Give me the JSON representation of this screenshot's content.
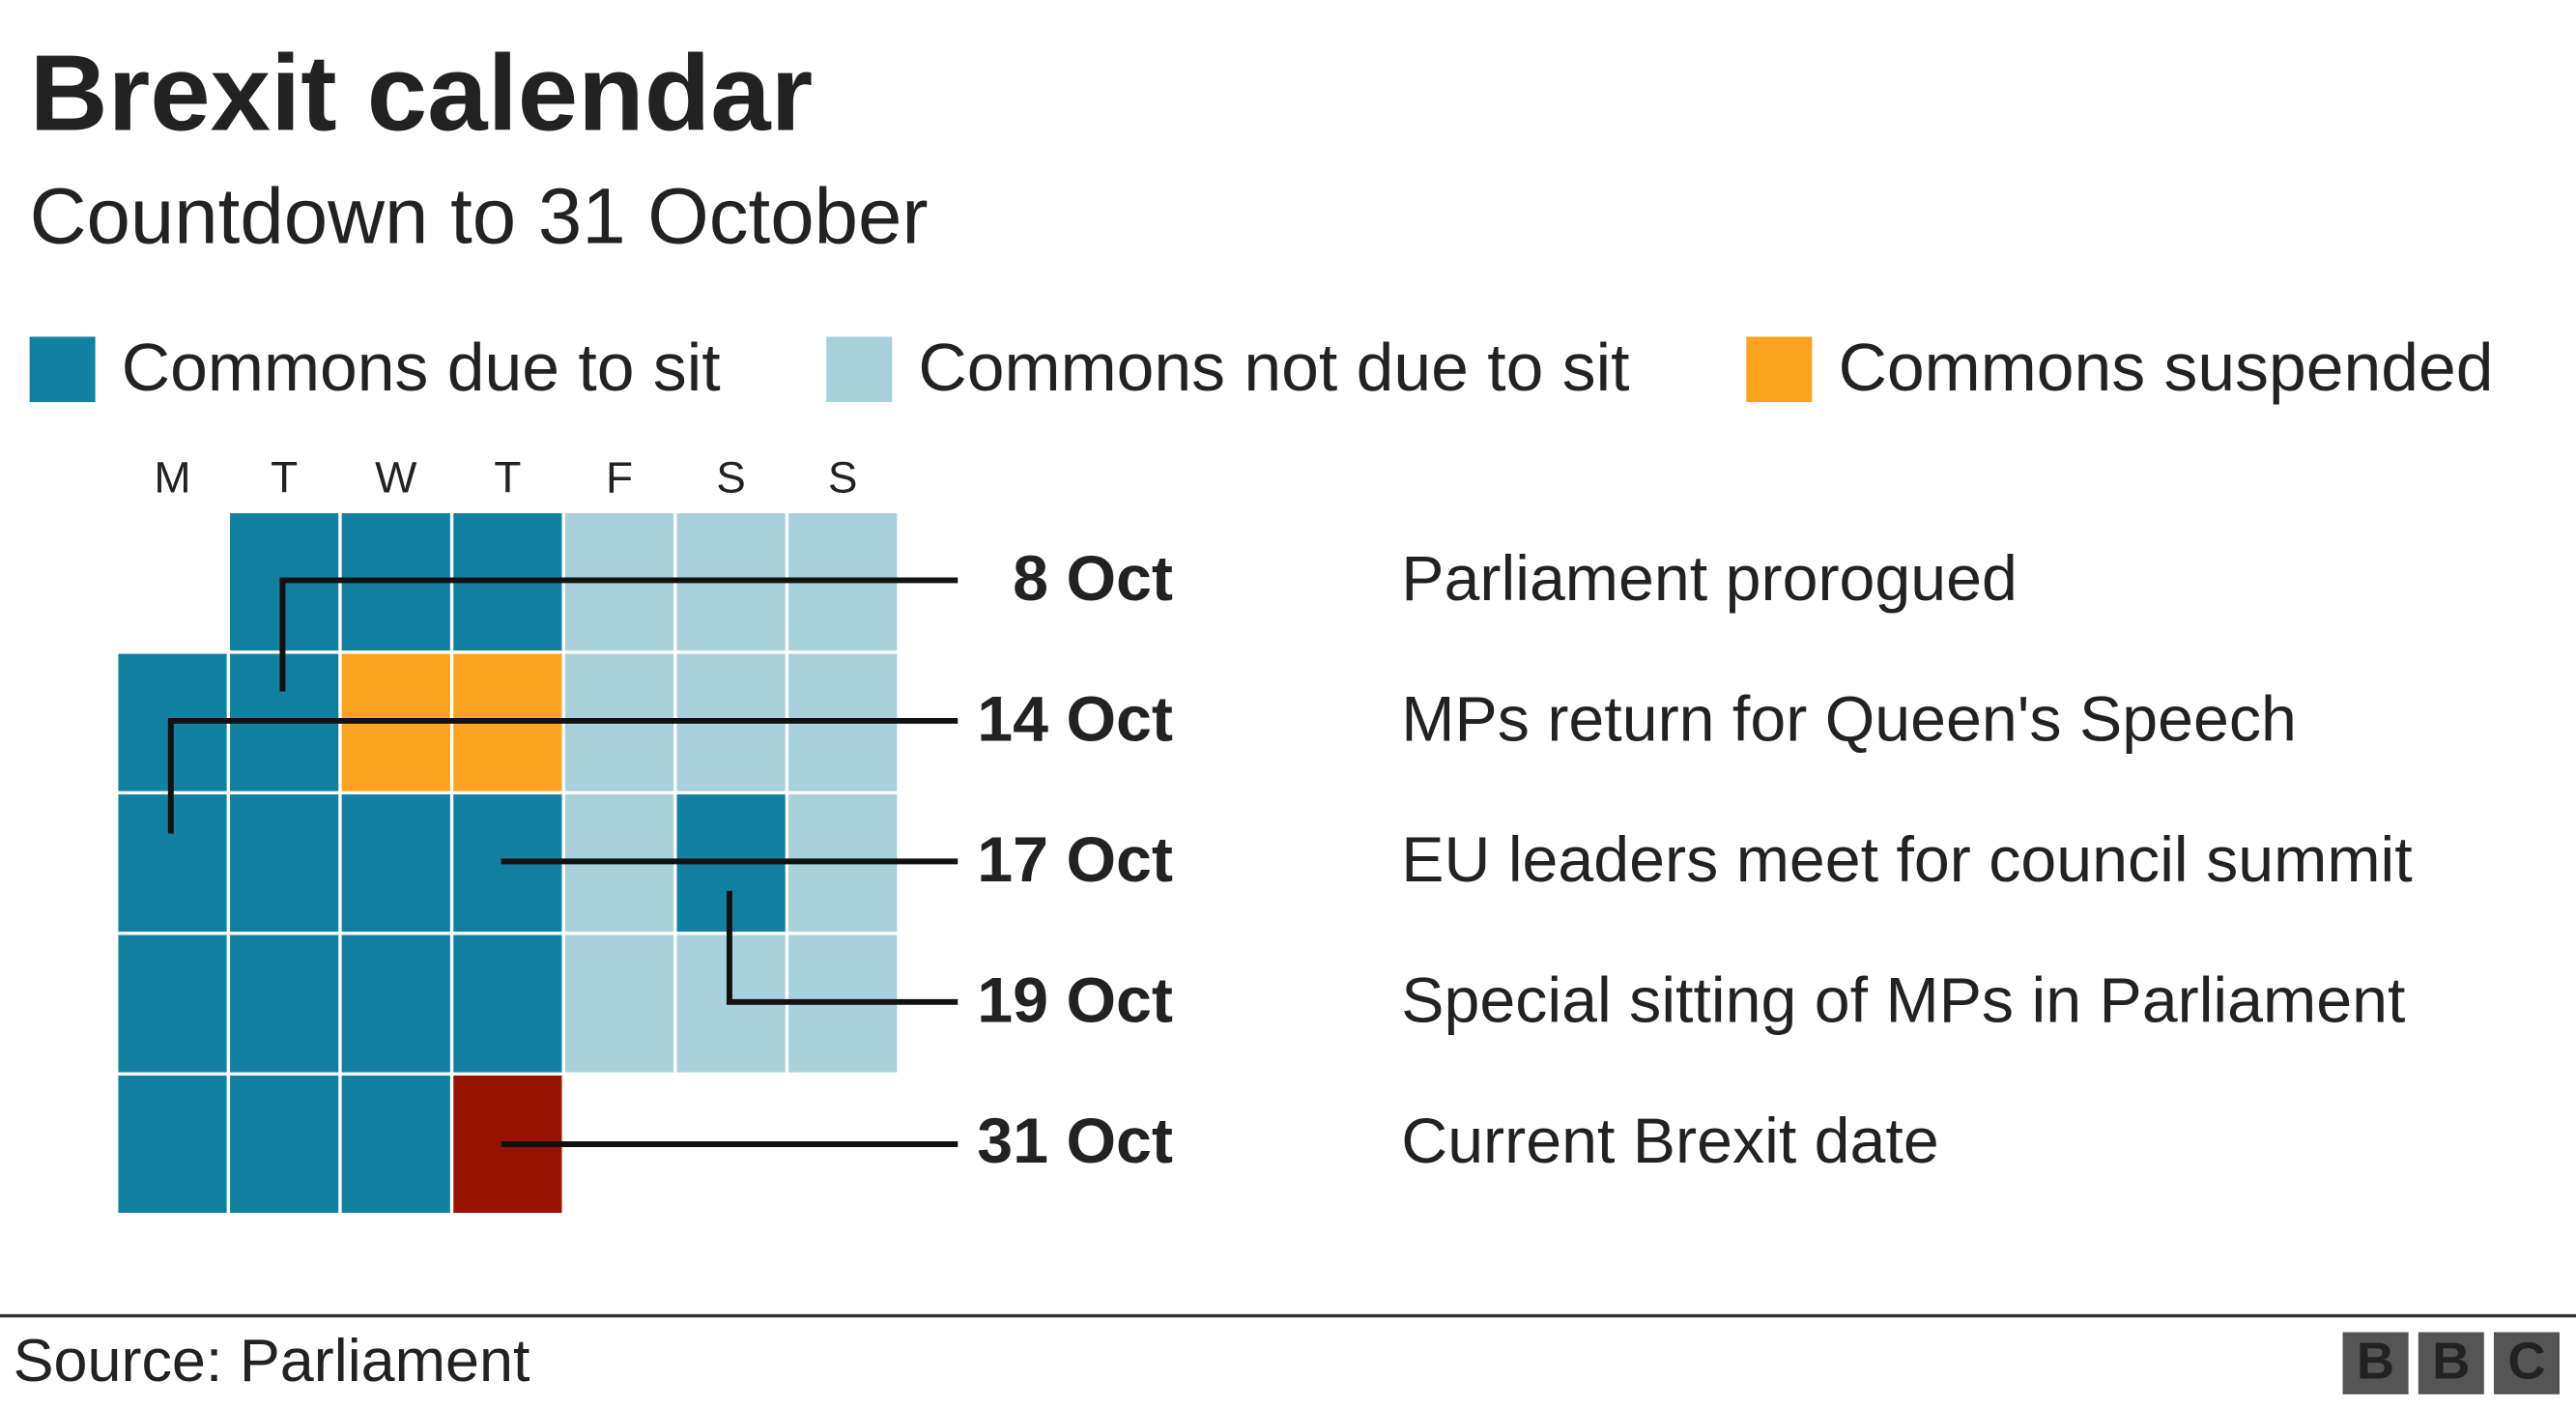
{
  "header": {
    "title": "Brexit calendar",
    "subtitle": "Countdown to 31 October"
  },
  "legend": [
    {
      "label": "Commons due to sit",
      "color": "#1380a1"
    },
    {
      "label": "Commons not due to sit",
      "color": "#a8d0dd"
    },
    {
      "label": "Commons suspended",
      "color": "#fca321"
    }
  ],
  "calendar": {
    "weekdays": [
      "M",
      "T",
      "W",
      "T",
      "F",
      "S",
      "S"
    ],
    "weeks": [
      [
        null,
        "#1380a1",
        "#1380a1",
        "#1380a1",
        "#a8d0dd",
        "#a8d0dd",
        "#a8d0dd"
      ],
      [
        "#1380a1",
        "#1380a1",
        "#fca321",
        "#fca321",
        "#a8d0dd",
        "#a8d0dd",
        "#a8d0dd"
      ],
      [
        "#1380a1",
        "#1380a1",
        "#1380a1",
        "#1380a1",
        "#a8d0dd",
        "#1380a1",
        "#a8d0dd"
      ],
      [
        "#1380a1",
        "#1380a1",
        "#1380a1",
        "#1380a1",
        "#a8d0dd",
        "#a8d0dd",
        "#a8d0dd"
      ],
      [
        "#1380a1",
        "#1380a1",
        "#1380a1",
        "#991100",
        null,
        null,
        null
      ]
    ]
  },
  "annotations": [
    {
      "date": "8 Oct",
      "text": "Parliament prorogued"
    },
    {
      "date": "14 Oct",
      "text": "MPs return for Queen's Speech"
    },
    {
      "date": "17 Oct",
      "text": "EU leaders meet for council summit"
    },
    {
      "date": "19 Oct",
      "text": "Special sitting of MPs in Parliament"
    },
    {
      "date": "31 Oct",
      "text": "Current Brexit date"
    }
  ],
  "footer": {
    "source": "Source: Parliament",
    "logo": [
      "B",
      "B",
      "C"
    ]
  }
}
